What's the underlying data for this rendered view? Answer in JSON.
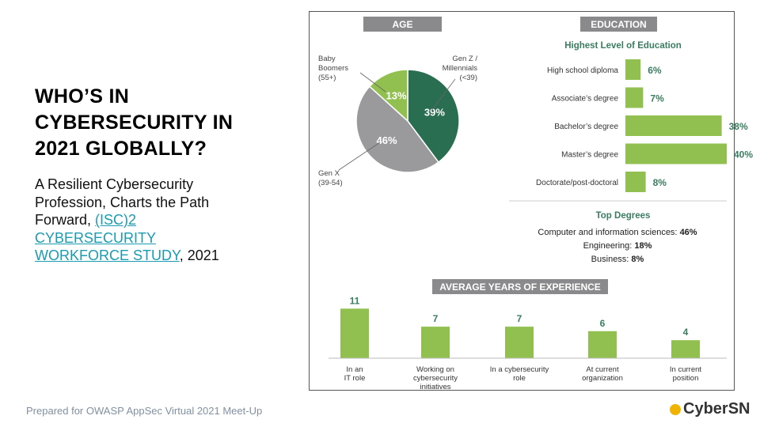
{
  "slide": {
    "title_lines": [
      "WHO’S IN",
      "CYBERSECURITY IN",
      "2021 GLOBALLY?"
    ],
    "subtitle_prefix": "A Resilient Cybersecurity Profession, Charts the Path Forward, ",
    "subtitle_link": "(ISC)2 CYBERSECURITY WORKFORCE STUDY",
    "subtitle_suffix": ", 2021",
    "footer": "Prepared for OWASP AppSec Virtual 2021 Meet-Up",
    "logo_text": "CyberSN"
  },
  "colors": {
    "dark_green": "#2a6e52",
    "light_green": "#92c050",
    "gray": "#9a9a9c",
    "header_gray": "#8a8a8c",
    "value_green": "#3a7d60",
    "link": "#1a9bb0"
  },
  "chart_data": [
    {
      "type": "pie",
      "title": "AGE",
      "slices": [
        {
          "label": [
            "Gen Z /",
            "Millennials",
            "(<39)"
          ],
          "value": 39,
          "display": "39%",
          "color": "#2a6e52"
        },
        {
          "label": [
            "Gen X",
            "(39-54)"
          ],
          "value": 46,
          "display": "46%",
          "color": "#9a9a9c"
        },
        {
          "label": [
            "Baby",
            "Boomers",
            "(55+)"
          ],
          "value": 13,
          "display": "13%",
          "color": "#92c050"
        }
      ]
    },
    {
      "type": "bar",
      "orientation": "horizontal",
      "header": "EDUCATION",
      "title": "Highest Level of Education",
      "categories": [
        "High school diploma",
        "Associate’s degree",
        "Bachelor’s degree",
        "Master’s degree",
        "Doctorate/post-doctoral"
      ],
      "values": [
        6,
        7,
        38,
        40,
        8
      ],
      "labels": [
        "6%",
        "7%",
        "38%",
        "40%",
        "8%"
      ],
      "top_degrees": {
        "title": "Top Degrees",
        "items": [
          {
            "name": "Computer and information sciences: ",
            "value": "46%"
          },
          {
            "name": "Engineering: ",
            "value": "18%"
          },
          {
            "name": "Business: ",
            "value": "8%"
          }
        ]
      }
    },
    {
      "type": "bar",
      "orientation": "vertical",
      "title": "AVERAGE YEARS OF EXPERIENCE",
      "categories": [
        [
          "In an",
          "IT role"
        ],
        [
          "Working on",
          "cybersecurity",
          "initiatives"
        ],
        [
          "In a cybersecurity",
          "role"
        ],
        [
          "At current",
          "organization"
        ],
        [
          "In current",
          "position"
        ]
      ],
      "values": [
        11,
        7,
        7,
        6,
        4
      ],
      "labels": [
        "11",
        "7",
        "7",
        "6",
        "4"
      ]
    }
  ]
}
